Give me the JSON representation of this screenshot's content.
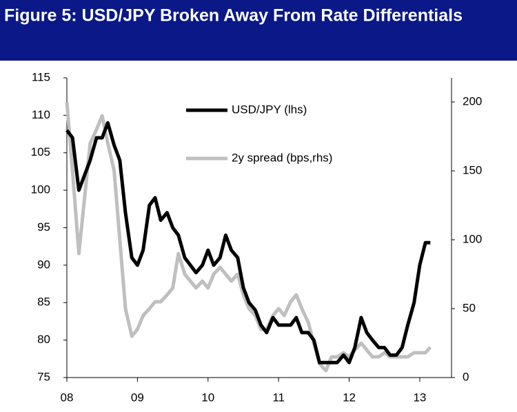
{
  "chart_data": {
    "type": "line",
    "title": "Figure 5: USD/JPY Broken Away From Rate Differentials",
    "x": [
      2008,
      2008.08,
      2008.17,
      2008.25,
      2008.33,
      2008.42,
      2008.5,
      2008.58,
      2008.67,
      2008.75,
      2008.83,
      2008.92,
      2009,
      2009.08,
      2009.17,
      2009.25,
      2009.33,
      2009.42,
      2009.5,
      2009.58,
      2009.67,
      2009.75,
      2009.83,
      2009.92,
      2010,
      2010.08,
      2010.17,
      2010.25,
      2010.33,
      2010.42,
      2010.5,
      2010.58,
      2010.67,
      2010.75,
      2010.83,
      2010.92,
      2011,
      2011.08,
      2011.17,
      2011.25,
      2011.33,
      2011.42,
      2011.5,
      2011.58,
      2011.67,
      2011.75,
      2011.83,
      2011.92,
      2012,
      2012.08,
      2012.17,
      2012.25,
      2012.33,
      2012.42,
      2012.5,
      2012.58,
      2012.67,
      2012.75,
      2012.83,
      2012.92,
      2013,
      2013.08,
      2013.15
    ],
    "series": [
      {
        "name": "USD/JPY (lhs)",
        "color": "#000000",
        "axis": "y",
        "values": [
          108,
          107,
          100,
          102,
          104,
          107,
          107,
          109,
          106,
          104,
          97,
          91,
          90,
          92,
          98,
          99,
          96,
          97,
          95,
          94,
          91,
          90,
          89,
          90,
          92,
          90,
          91,
          94,
          92,
          91,
          87,
          85,
          84,
          82,
          81,
          83,
          82,
          82,
          82,
          83,
          81,
          81,
          80,
          77,
          77,
          77,
          77,
          78,
          77,
          79,
          83,
          81,
          80,
          79,
          79,
          78,
          78,
          79,
          82,
          85,
          90,
          93,
          93
        ]
      },
      {
        "name": "2y spread (bps,rhs)",
        "color": "#bfbfbf",
        "axis": "y2",
        "values": [
          200,
          150,
          90,
          130,
          170,
          180,
          190,
          170,
          150,
          100,
          50,
          30,
          35,
          45,
          50,
          55,
          55,
          60,
          65,
          90,
          75,
          70,
          65,
          70,
          65,
          75,
          80,
          75,
          70,
          75,
          60,
          50,
          45,
          35,
          35,
          45,
          50,
          45,
          55,
          60,
          50,
          40,
          25,
          10,
          5,
          15,
          15,
          18,
          15,
          20,
          25,
          20,
          15,
          15,
          18,
          15,
          15,
          15,
          15,
          18,
          18,
          18,
          22
        ]
      }
    ],
    "xlim": [
      2008,
      2013.45
    ],
    "xticks": [
      {
        "value": 2008,
        "label": "08"
      },
      {
        "value": 2009,
        "label": "09"
      },
      {
        "value": 2010,
        "label": "10"
      },
      {
        "value": 2011,
        "label": "11"
      },
      {
        "value": 2012,
        "label": "12"
      },
      {
        "value": 2013,
        "label": "13"
      }
    ],
    "ylim": [
      75,
      115
    ],
    "yticks": [
      75,
      80,
      85,
      90,
      95,
      100,
      105,
      110,
      115
    ],
    "y2lim": [
      0,
      217.5
    ],
    "y2ticks": [
      0,
      50,
      100,
      150,
      200
    ]
  }
}
